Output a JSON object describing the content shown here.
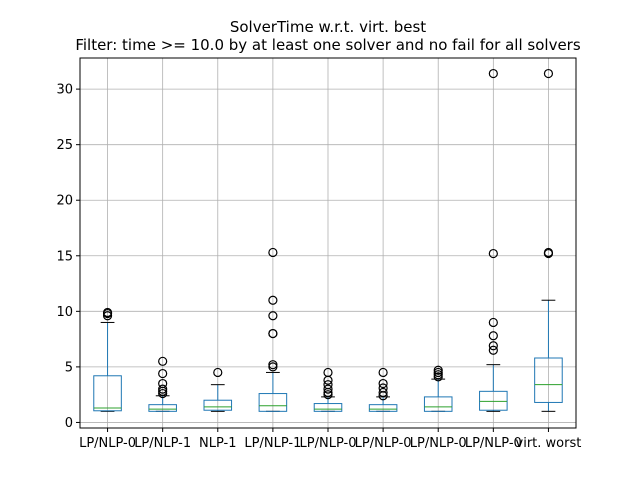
{
  "chart_data": {
    "type": "box",
    "title": "SolverTime w.r.t. virt. best",
    "subtitle": "Filter: time >= 10.0 by at least one solver and no fail for all solvers",
    "xlabel": "",
    "ylabel": "",
    "ylim": [
      -0.5,
      32.8
    ],
    "yticks": [
      0,
      5,
      10,
      15,
      20,
      25,
      30
    ],
    "grid": true,
    "legend": "none",
    "colors": {
      "box": "#1f77b4",
      "median": "#2ca02c",
      "whisker": "#000000",
      "flier": "#000000",
      "grid": "#b0b0b0"
    },
    "categories": [
      "LP/NLP-0",
      "LP/NLP-1",
      "NLP-1",
      "LP/NLP-1",
      "LP/NLP-0",
      "LP/NLP-0",
      "LP/NLP-0",
      "LP/NLP-0",
      "virt. worst"
    ],
    "boxes": [
      {
        "whislo": 1.0,
        "q1": 1.05,
        "med": 1.3,
        "q3": 4.2,
        "whishi": 9.0,
        "fliers": [
          9.6,
          9.8,
          9.9
        ]
      },
      {
        "whislo": 1.0,
        "q1": 1.0,
        "med": 1.2,
        "q3": 1.6,
        "whishi": 2.4,
        "fliers": [
          2.6,
          2.8,
          3.0,
          3.5,
          4.4,
          5.5
        ]
      },
      {
        "whislo": 1.0,
        "q1": 1.1,
        "med": 1.4,
        "q3": 2.0,
        "whishi": 3.4,
        "fliers": [
          4.5
        ]
      },
      {
        "whislo": 1.0,
        "q1": 1.0,
        "med": 1.5,
        "q3": 2.6,
        "whishi": 4.5,
        "fliers": [
          5.0,
          5.2,
          8.0,
          8.0,
          9.6,
          11.0,
          15.3
        ]
      },
      {
        "whislo": 1.0,
        "q1": 1.0,
        "med": 1.2,
        "q3": 1.7,
        "whishi": 2.3,
        "fliers": [
          2.5,
          2.7,
          3.0,
          3.4,
          3.8,
          4.5
        ]
      },
      {
        "whislo": 1.0,
        "q1": 1.0,
        "med": 1.2,
        "q3": 1.6,
        "whishi": 2.3,
        "fliers": [
          2.4,
          2.7,
          3.1,
          3.5,
          4.5
        ]
      },
      {
        "whislo": 1.0,
        "q1": 1.0,
        "med": 1.4,
        "q3": 2.3,
        "whishi": 3.9,
        "fliers": [
          4.1,
          4.3,
          4.5,
          4.7
        ]
      },
      {
        "whislo": 1.0,
        "q1": 1.1,
        "med": 1.9,
        "q3": 2.8,
        "whishi": 5.2,
        "fliers": [
          6.5,
          6.9,
          7.8,
          9.0,
          15.2,
          31.4
        ]
      },
      {
        "whislo": 1.0,
        "q1": 1.8,
        "med": 3.4,
        "q3": 5.8,
        "whishi": 11.0,
        "fliers": [
          15.2,
          15.3,
          31.4
        ]
      }
    ]
  }
}
